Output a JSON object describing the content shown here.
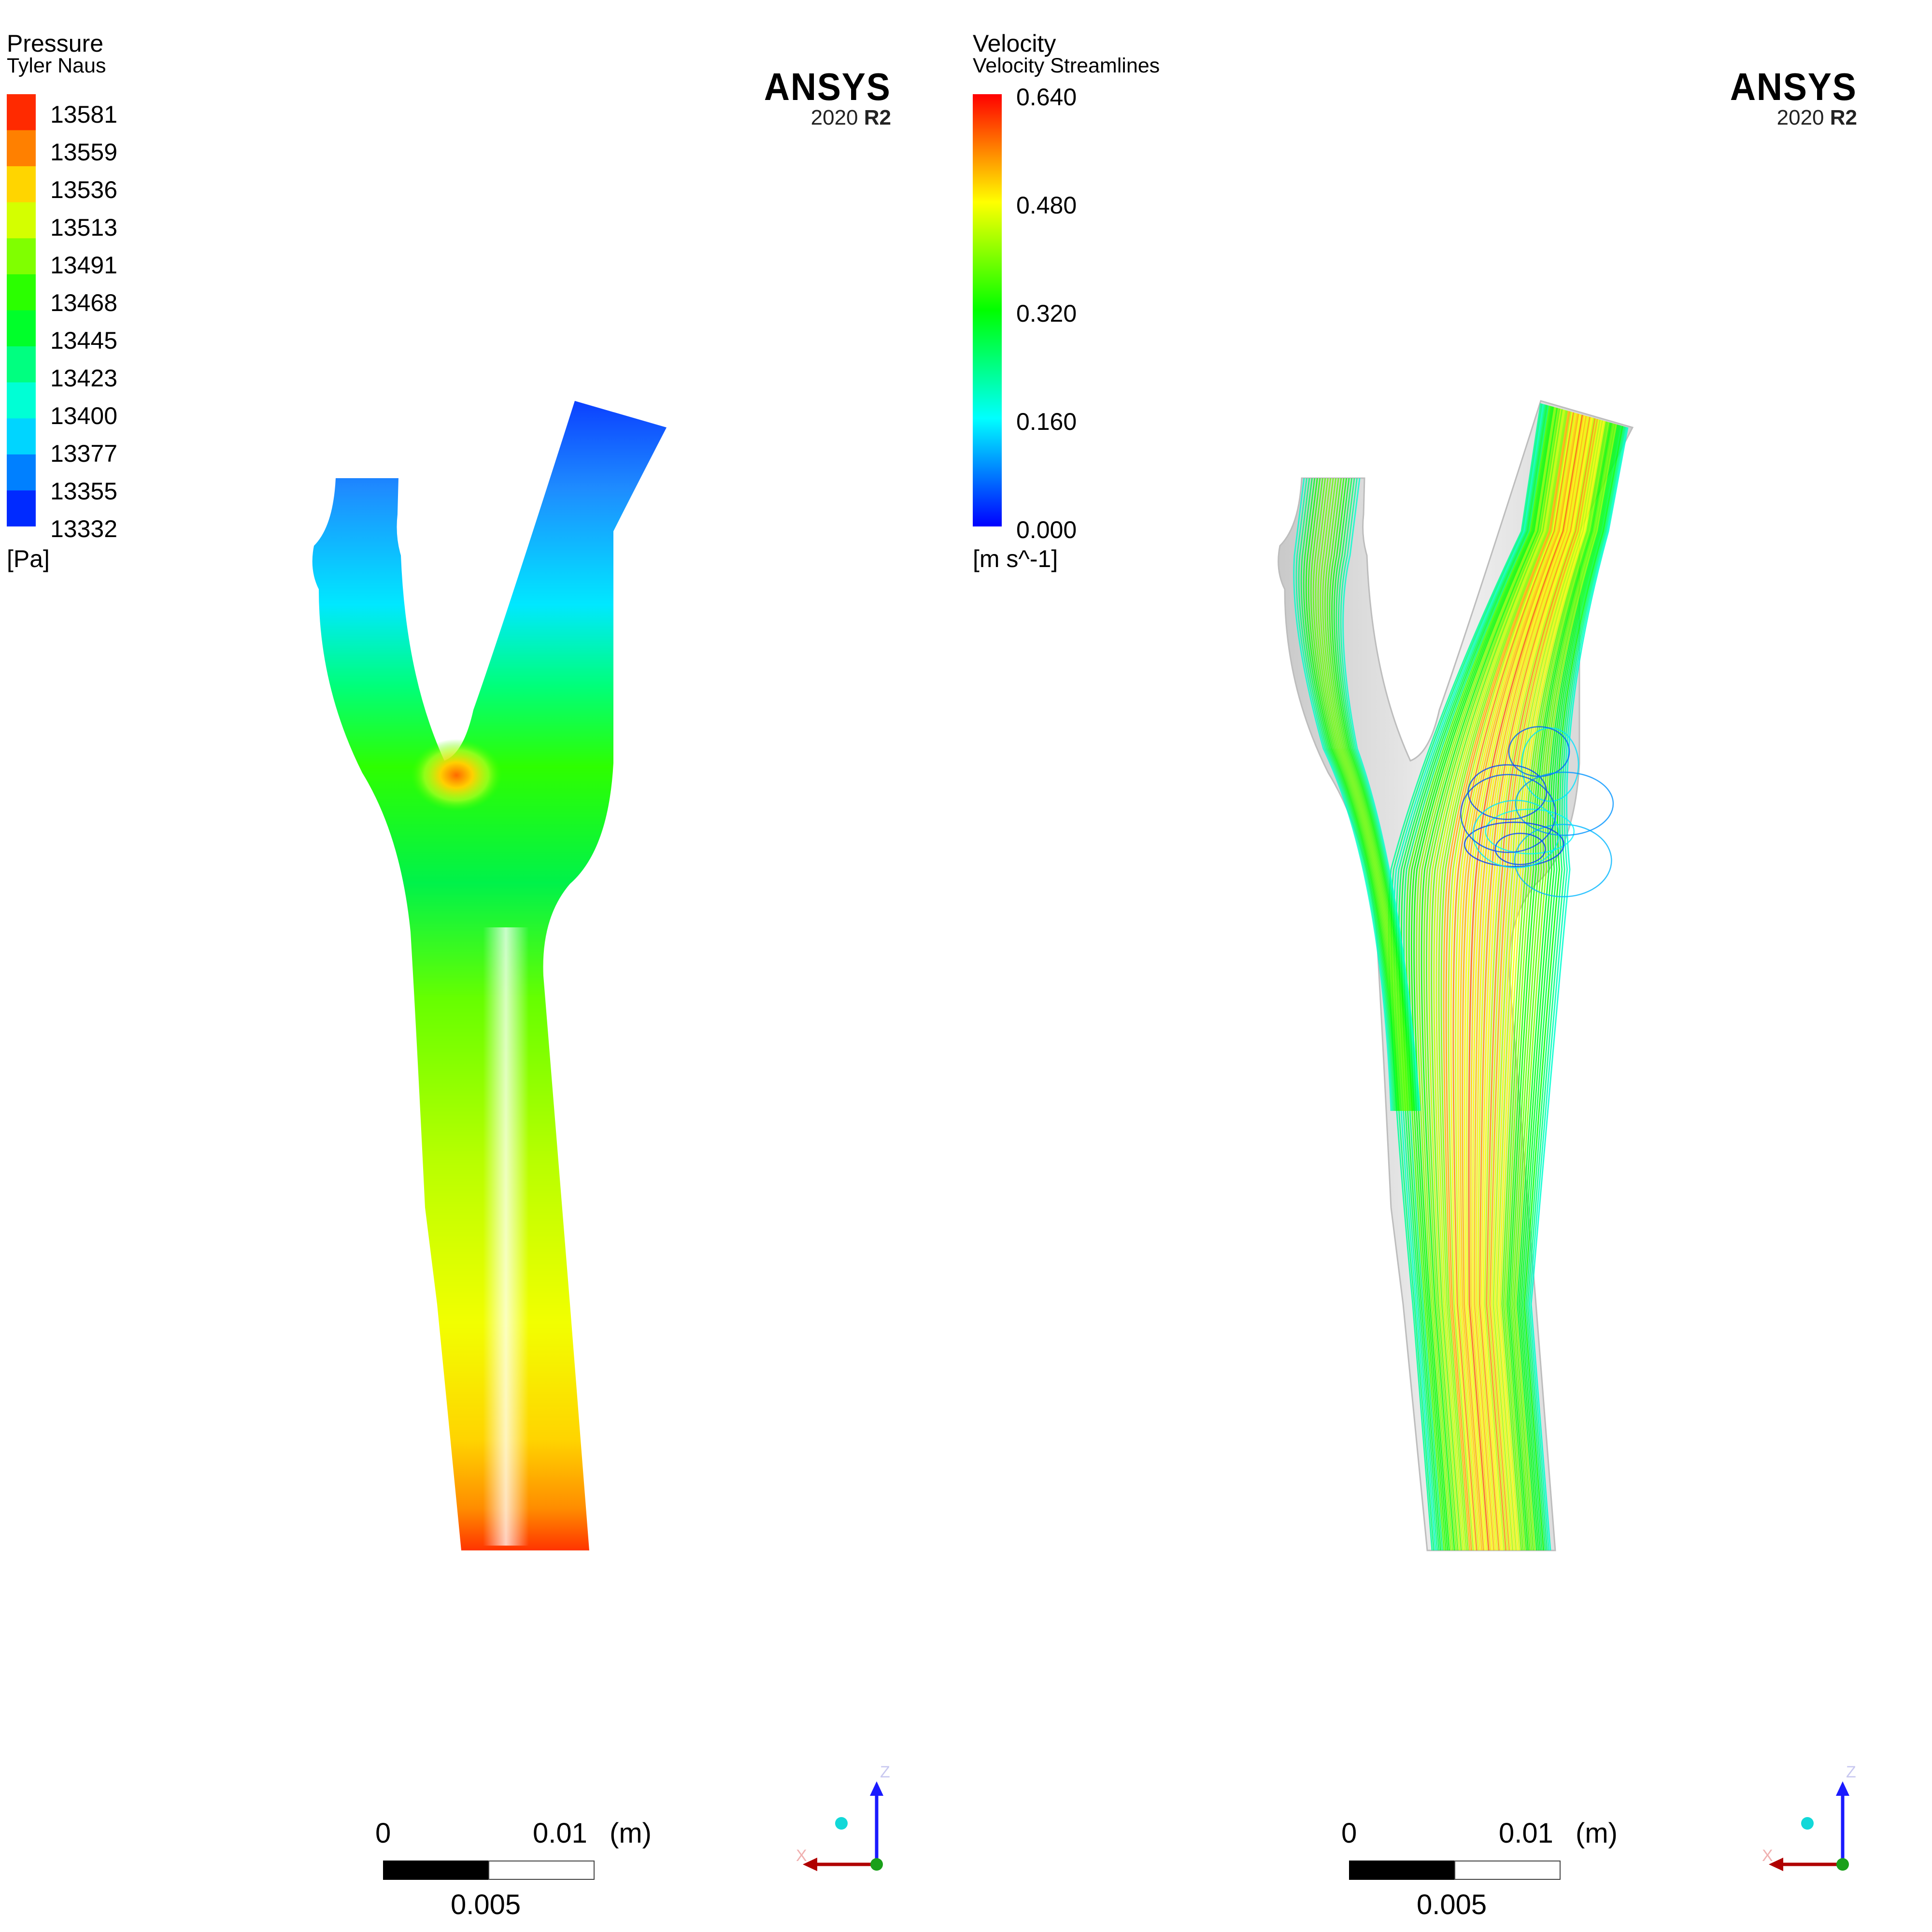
{
  "panels": [
    {
      "legend": {
        "title": "Pressure",
        "subtitle": "Tyler Naus",
        "ticks": [
          "13581",
          "13559",
          "13536",
          "13513",
          "13491",
          "13468",
          "13445",
          "13423",
          "13400",
          "13377",
          "13355",
          "13332"
        ],
        "unit": "[Pa]",
        "min": 13332,
        "max": 13581,
        "band_count": 12
      },
      "logo": {
        "brand": "ANSYS",
        "version_year": "2020",
        "version_release": "R2"
      },
      "scale": {
        "start": "0",
        "end": "0.01",
        "unit": "(m)",
        "mid": "0.005"
      },
      "axes": {
        "z": "Z",
        "x": "X"
      }
    },
    {
      "legend": {
        "title": "Velocity",
        "subtitle": "Velocity Streamlines",
        "ticks": [
          "0.640",
          "0.480",
          "0.320",
          "0.160",
          "0.000"
        ],
        "unit": "[m s^-1]",
        "min": 0.0,
        "max": 0.64,
        "band_count": 0
      },
      "logo": {
        "brand": "ANSYS",
        "version_year": "2020",
        "version_release": "R2"
      },
      "scale": {
        "start": "0",
        "end": "0.01",
        "unit": "(m)",
        "mid": "0.005"
      },
      "axes": {
        "z": "Z",
        "x": "X"
      }
    }
  ],
  "colors": {
    "rainbow": [
      "#0000ff",
      "#00c8ff",
      "#00ff00",
      "#ffff00",
      "#ff0000"
    ],
    "wall": "#d6d6d6"
  }
}
